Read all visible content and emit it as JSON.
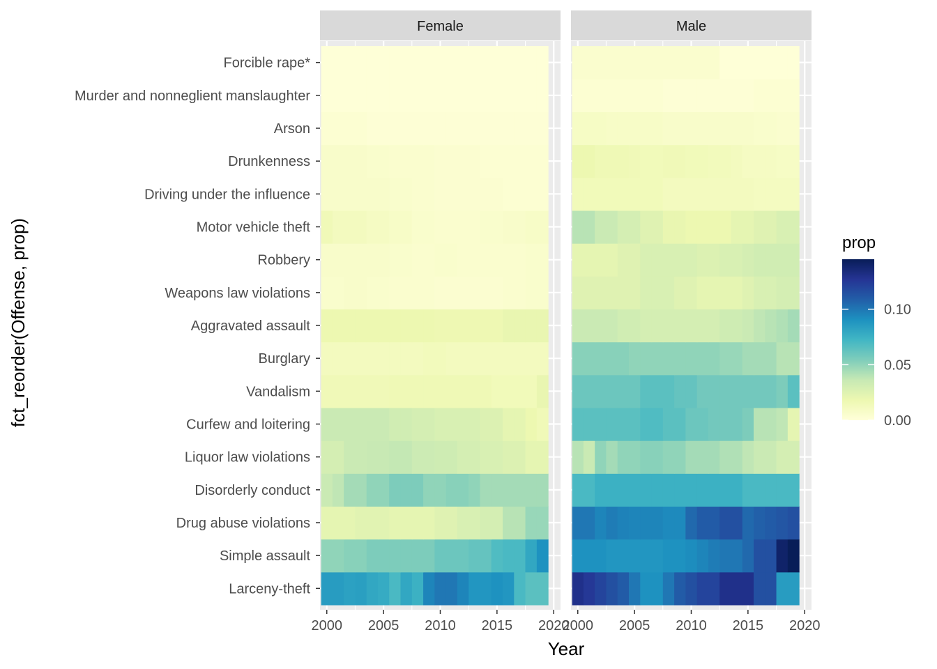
{
  "chart_data": {
    "type": "heatmap",
    "xlabel": "Year",
    "ylabel": "fct_reorder(Offense, prop)",
    "legend": {
      "title": "prop",
      "ticks": [
        "0.00",
        "0.05",
        "0.10"
      ],
      "tick_values": [
        0,
        0.05,
        0.1
      ],
      "range": [
        0,
        0.145
      ],
      "placement": "right"
    },
    "colors": [
      "#ffffd9",
      "#edf8b1",
      "#c7e9b4",
      "#7fcdbb",
      "#41b6c4",
      "#1d91c0",
      "#225ea8",
      "#253494",
      "#081d58"
    ],
    "x_ticks": [
      "2000",
      "2005",
      "2010",
      "2015",
      "2020"
    ],
    "x_tick_values": [
      2000,
      2005,
      2010,
      2015,
      2020
    ],
    "xlim": [
      1999.4,
      2020.6
    ],
    "years": [
      2000,
      2001,
      2002,
      2003,
      2004,
      2005,
      2006,
      2007,
      2008,
      2009,
      2010,
      2011,
      2012,
      2013,
      2014,
      2015,
      2016,
      2017,
      2018,
      2019
    ],
    "categories": [
      "Larceny-theft",
      "Simple assault",
      "Drug abuse violations",
      "Disorderly conduct",
      "Liquor law violations",
      "Curfew and loitering",
      "Vandalism",
      "Burglary",
      "Aggravated assault",
      "Weapons law violations",
      "Robbery",
      "Motor vehicle theft",
      "Driving under the influence",
      "Drunkenness",
      "Arson",
      "Murder and nonneglient manslaughter",
      "Forcible rape*"
    ],
    "panels": [
      {
        "name": "Female",
        "values": [
          [
            0.085,
            0.085,
            0.083,
            0.084,
            0.08,
            0.078,
            0.07,
            0.08,
            0.075,
            0.095,
            0.1,
            0.1,
            0.095,
            0.088,
            0.088,
            0.09,
            0.088,
            0.07,
            0.065,
            0.065
          ],
          [
            0.05,
            0.05,
            0.052,
            0.052,
            0.055,
            0.055,
            0.055,
            0.055,
            0.055,
            0.055,
            0.06,
            0.06,
            0.06,
            0.062,
            0.062,
            0.068,
            0.07,
            0.07,
            0.08,
            0.09
          ],
          [
            0.022,
            0.022,
            0.022,
            0.024,
            0.024,
            0.024,
            0.022,
            0.022,
            0.022,
            0.022,
            0.025,
            0.025,
            0.028,
            0.028,
            0.03,
            0.03,
            0.04,
            0.04,
            0.048,
            0.048
          ],
          [
            0.035,
            0.038,
            0.045,
            0.045,
            0.05,
            0.05,
            0.055,
            0.055,
            0.055,
            0.05,
            0.05,
            0.052,
            0.052,
            0.05,
            0.045,
            0.045,
            0.045,
            0.045,
            0.045,
            0.045
          ],
          [
            0.03,
            0.03,
            0.035,
            0.035,
            0.036,
            0.036,
            0.037,
            0.037,
            0.034,
            0.034,
            0.033,
            0.033,
            0.03,
            0.03,
            0.028,
            0.028,
            0.026,
            0.026,
            0.022,
            0.022
          ],
          [
            0.035,
            0.035,
            0.035,
            0.035,
            0.035,
            0.035,
            0.032,
            0.032,
            0.03,
            0.03,
            0.028,
            0.028,
            0.028,
            0.028,
            0.026,
            0.026,
            0.022,
            0.022,
            0.018,
            0.015
          ],
          [
            0.015,
            0.015,
            0.015,
            0.015,
            0.015,
            0.015,
            0.016,
            0.016,
            0.016,
            0.016,
            0.016,
            0.016,
            0.016,
            0.016,
            0.016,
            0.014,
            0.014,
            0.014,
            0.014,
            0.02
          ],
          [
            0.012,
            0.012,
            0.012,
            0.012,
            0.012,
            0.012,
            0.012,
            0.012,
            0.012,
            0.013,
            0.013,
            0.012,
            0.012,
            0.012,
            0.012,
            0.012,
            0.012,
            0.012,
            0.012,
            0.012
          ],
          [
            0.018,
            0.018,
            0.018,
            0.018,
            0.018,
            0.018,
            0.018,
            0.018,
            0.018,
            0.018,
            0.017,
            0.017,
            0.017,
            0.017,
            0.017,
            0.017,
            0.02,
            0.02,
            0.02,
            0.02
          ],
          [
            0.006,
            0.006,
            0.007,
            0.007,
            0.006,
            0.006,
            0.005,
            0.005,
            0.005,
            0.005,
            0.004,
            0.004,
            0.004,
            0.004,
            0.004,
            0.004,
            0.005,
            0.005,
            0.006,
            0.006
          ],
          [
            0.007,
            0.007,
            0.007,
            0.007,
            0.007,
            0.007,
            0.006,
            0.006,
            0.005,
            0.005,
            0.006,
            0.006,
            0.005,
            0.005,
            0.005,
            0.005,
            0.005,
            0.005,
            0.006,
            0.006
          ],
          [
            0.015,
            0.012,
            0.012,
            0.012,
            0.01,
            0.01,
            0.008,
            0.008,
            0.006,
            0.006,
            0.005,
            0.005,
            0.005,
            0.005,
            0.006,
            0.006,
            0.007,
            0.007,
            0.008,
            0.008
          ],
          [
            0.007,
            0.007,
            0.007,
            0.007,
            0.007,
            0.007,
            0.006,
            0.006,
            0.005,
            0.005,
            0.004,
            0.004,
            0.004,
            0.004,
            0.004,
            0.004,
            0.003,
            0.003,
            0.003,
            0.003
          ],
          [
            0.007,
            0.007,
            0.007,
            0.007,
            0.006,
            0.006,
            0.005,
            0.005,
            0.005,
            0.005,
            0.004,
            0.004,
            0.004,
            0.004,
            0.003,
            0.003,
            0.003,
            0.003,
            0.003,
            0.003
          ],
          [
            0.003,
            0.003,
            0.003,
            0.003,
            0.002,
            0.002,
            0.002,
            0.002,
            0.002,
            0.002,
            0.002,
            0.002,
            0.002,
            0.002,
            0.002,
            0.002,
            0.002,
            0.002,
            0.002,
            0.002
          ],
          [
            0.001,
            0.001,
            0.001,
            0.001,
            0.001,
            0.001,
            0.001,
            0.001,
            0.001,
            0.001,
            0.001,
            0.001,
            0.001,
            0.001,
            0.001,
            0.001,
            0.001,
            0.001,
            0.001,
            0.001
          ],
          [
            0.001,
            0.001,
            0.001,
            0.001,
            0.001,
            0.001,
            0.001,
            0.001,
            0.001,
            0.001,
            0.001,
            0.001,
            0.001,
            0.001,
            0.001,
            0.001,
            0.001,
            0.001,
            0.001,
            0.001
          ]
        ]
      },
      {
        "name": "Male",
        "values": [
          [
            0.13,
            0.125,
            0.12,
            0.115,
            0.11,
            0.1,
            0.09,
            0.09,
            0.1,
            0.11,
            0.115,
            0.12,
            0.12,
            0.13,
            0.13,
            0.13,
            0.115,
            0.115,
            0.085,
            0.085
          ],
          [
            0.09,
            0.09,
            0.09,
            0.088,
            0.088,
            0.088,
            0.088,
            0.088,
            0.09,
            0.09,
            0.092,
            0.095,
            0.098,
            0.1,
            0.1,
            0.105,
            0.115,
            0.115,
            0.14,
            0.145
          ],
          [
            0.1,
            0.1,
            0.095,
            0.098,
            0.096,
            0.095,
            0.095,
            0.095,
            0.093,
            0.093,
            0.105,
            0.11,
            0.11,
            0.115,
            0.115,
            0.105,
            0.108,
            0.11,
            0.112,
            0.115
          ],
          [
            0.07,
            0.07,
            0.075,
            0.075,
            0.075,
            0.075,
            0.075,
            0.075,
            0.075,
            0.075,
            0.075,
            0.075,
            0.075,
            0.075,
            0.075,
            0.07,
            0.07,
            0.07,
            0.07,
            0.07
          ],
          [
            0.04,
            0.035,
            0.05,
            0.045,
            0.05,
            0.05,
            0.052,
            0.052,
            0.05,
            0.05,
            0.045,
            0.045,
            0.045,
            0.042,
            0.042,
            0.038,
            0.035,
            0.035,
            0.03,
            0.03
          ],
          [
            0.065,
            0.065,
            0.065,
            0.065,
            0.065,
            0.065,
            0.068,
            0.068,
            0.065,
            0.065,
            0.06,
            0.06,
            0.058,
            0.058,
            0.058,
            0.055,
            0.04,
            0.04,
            0.038,
            0.022
          ],
          [
            0.06,
            0.06,
            0.06,
            0.06,
            0.06,
            0.06,
            0.065,
            0.065,
            0.065,
            0.062,
            0.062,
            0.058,
            0.058,
            0.058,
            0.058,
            0.058,
            0.058,
            0.058,
            0.055,
            0.065
          ],
          [
            0.052,
            0.052,
            0.052,
            0.052,
            0.052,
            0.05,
            0.05,
            0.05,
            0.05,
            0.05,
            0.05,
            0.05,
            0.05,
            0.048,
            0.048,
            0.045,
            0.045,
            0.045,
            0.04,
            0.04
          ],
          [
            0.035,
            0.035,
            0.035,
            0.035,
            0.032,
            0.032,
            0.03,
            0.03,
            0.03,
            0.03,
            0.03,
            0.03,
            0.03,
            0.033,
            0.033,
            0.035,
            0.038,
            0.04,
            0.042,
            0.045
          ],
          [
            0.025,
            0.025,
            0.025,
            0.025,
            0.025,
            0.025,
            0.028,
            0.028,
            0.028,
            0.025,
            0.025,
            0.022,
            0.022,
            0.022,
            0.022,
            0.025,
            0.028,
            0.028,
            0.03,
            0.03
          ],
          [
            0.022,
            0.022,
            0.022,
            0.022,
            0.025,
            0.025,
            0.028,
            0.028,
            0.028,
            0.028,
            0.028,
            0.026,
            0.026,
            0.028,
            0.028,
            0.03,
            0.032,
            0.032,
            0.032,
            0.032
          ],
          [
            0.04,
            0.04,
            0.035,
            0.035,
            0.03,
            0.03,
            0.025,
            0.025,
            0.02,
            0.02,
            0.018,
            0.018,
            0.018,
            0.018,
            0.022,
            0.022,
            0.025,
            0.025,
            0.028,
            0.028
          ],
          [
            0.014,
            0.014,
            0.014,
            0.014,
            0.014,
            0.014,
            0.014,
            0.014,
            0.012,
            0.012,
            0.012,
            0.012,
            0.012,
            0.012,
            0.012,
            0.012,
            0.011,
            0.011,
            0.011,
            0.011
          ],
          [
            0.018,
            0.018,
            0.016,
            0.016,
            0.016,
            0.015,
            0.014,
            0.014,
            0.015,
            0.015,
            0.014,
            0.014,
            0.013,
            0.013,
            0.012,
            0.01,
            0.01,
            0.01,
            0.009,
            0.009
          ],
          [
            0.009,
            0.009,
            0.009,
            0.008,
            0.008,
            0.008,
            0.008,
            0.008,
            0.007,
            0.007,
            0.007,
            0.007,
            0.007,
            0.007,
            0.007,
            0.007,
            0.006,
            0.006,
            0.005,
            0.005
          ],
          [
            0.003,
            0.003,
            0.003,
            0.003,
            0.003,
            0.003,
            0.003,
            0.003,
            0.002,
            0.002,
            0.002,
            0.002,
            0.002,
            0.002,
            0.002,
            0.002,
            0.003,
            0.003,
            0.003,
            0.003
          ],
          [
            0.005,
            0.005,
            0.005,
            0.005,
            0.005,
            0.005,
            0.005,
            0.005,
            0.005,
            0.005,
            0.005,
            0.005,
            0.005,
            0.001,
            0.001,
            0.001,
            0.001,
            0.001,
            0.001,
            0.001
          ]
        ]
      }
    ]
  }
}
